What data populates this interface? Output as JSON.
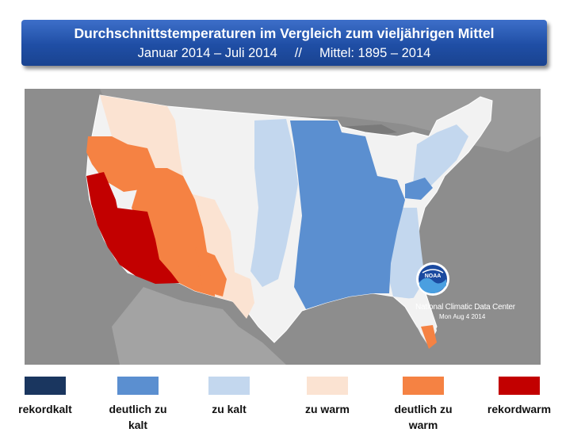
{
  "title": {
    "line1": "Durchschnittstemperaturen im Vergleich zum vieljährigen Mittel",
    "period": "Januar 2014 – Juli 2014",
    "separator": "//",
    "baseline": "Mittel: 1895 – 2014"
  },
  "map": {
    "credit_name": "National Climatic Data Center",
    "credit_date": "Mon Aug  4 2014",
    "logo_text": "NOAA"
  },
  "legend": [
    {
      "label": "rekordkalt",
      "color": "#1a365f"
    },
    {
      "label": "deutlich zu\nkalt",
      "color": "#5b8fd0"
    },
    {
      "label": "zu kalt",
      "color": "#c3d7ee"
    },
    {
      "label": "zu warm",
      "color": "#fbe3d2"
    },
    {
      "label": "deutlich zu\nwarm",
      "color": "#f58243"
    },
    {
      "label": "rekordwarm",
      "color": "#c20000"
    }
  ],
  "colors": {
    "record_cold": "#1a365f",
    "much_below": "#5b8fd0",
    "below": "#c3d7ee",
    "near": "#f2f2f2",
    "above": "#fbe3d2",
    "much_above": "#f58243",
    "record_warm": "#c20000",
    "banner": "#2a5bb5"
  }
}
